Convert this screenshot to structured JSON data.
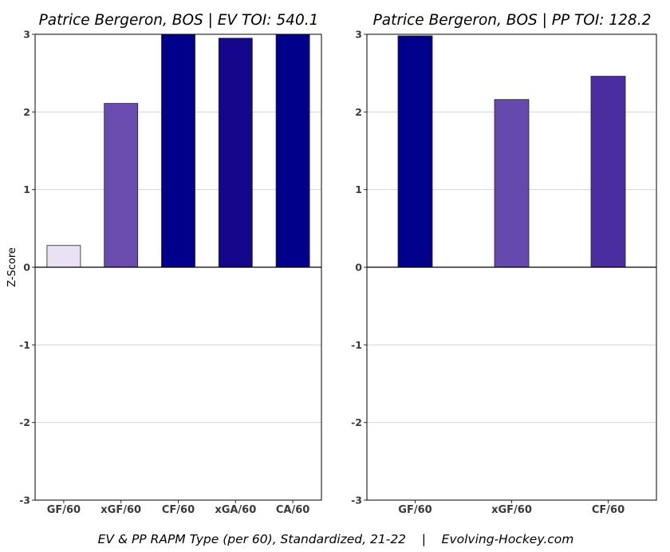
{
  "chart_data": [
    {
      "type": "bar",
      "title": "Patrice Bergeron, BOS  |  EV TOI: 540.1",
      "ylabel": "Z-Score",
      "categories": [
        "GF/60",
        "xGF/60",
        "CF/60",
        "xGA/60",
        "CA/60"
      ],
      "values": [
        0.28,
        2.11,
        3.0,
        2.95,
        3.0
      ],
      "colors": [
        "#e8e2f4",
        "#6a4caf",
        "#00008b",
        "#14078b",
        "#00008b"
      ],
      "ylim": [
        -3,
        3
      ],
      "yticks": [
        "-3",
        "-2",
        "-1",
        "0",
        "1",
        "2",
        "3"
      ],
      "grid": true
    },
    {
      "type": "bar",
      "title": "Patrice Bergeron, BOS  |  PP TOI: 128.2",
      "categories": [
        "GF/60",
        "xGF/60",
        "CF/60"
      ],
      "values": [
        2.98,
        2.16,
        2.46
      ],
      "colors": [
        "#00008b",
        "#6649ac",
        "#4a2d9e"
      ],
      "ylim": [
        -3,
        3
      ],
      "yticks": [
        "-3",
        "-2",
        "-1",
        "0",
        "1",
        "2",
        "3"
      ],
      "grid": true
    }
  ],
  "caption": "EV & PP RAPM Type (per 60), Standardized, 21-22    |    Evolving-Hockey.com"
}
